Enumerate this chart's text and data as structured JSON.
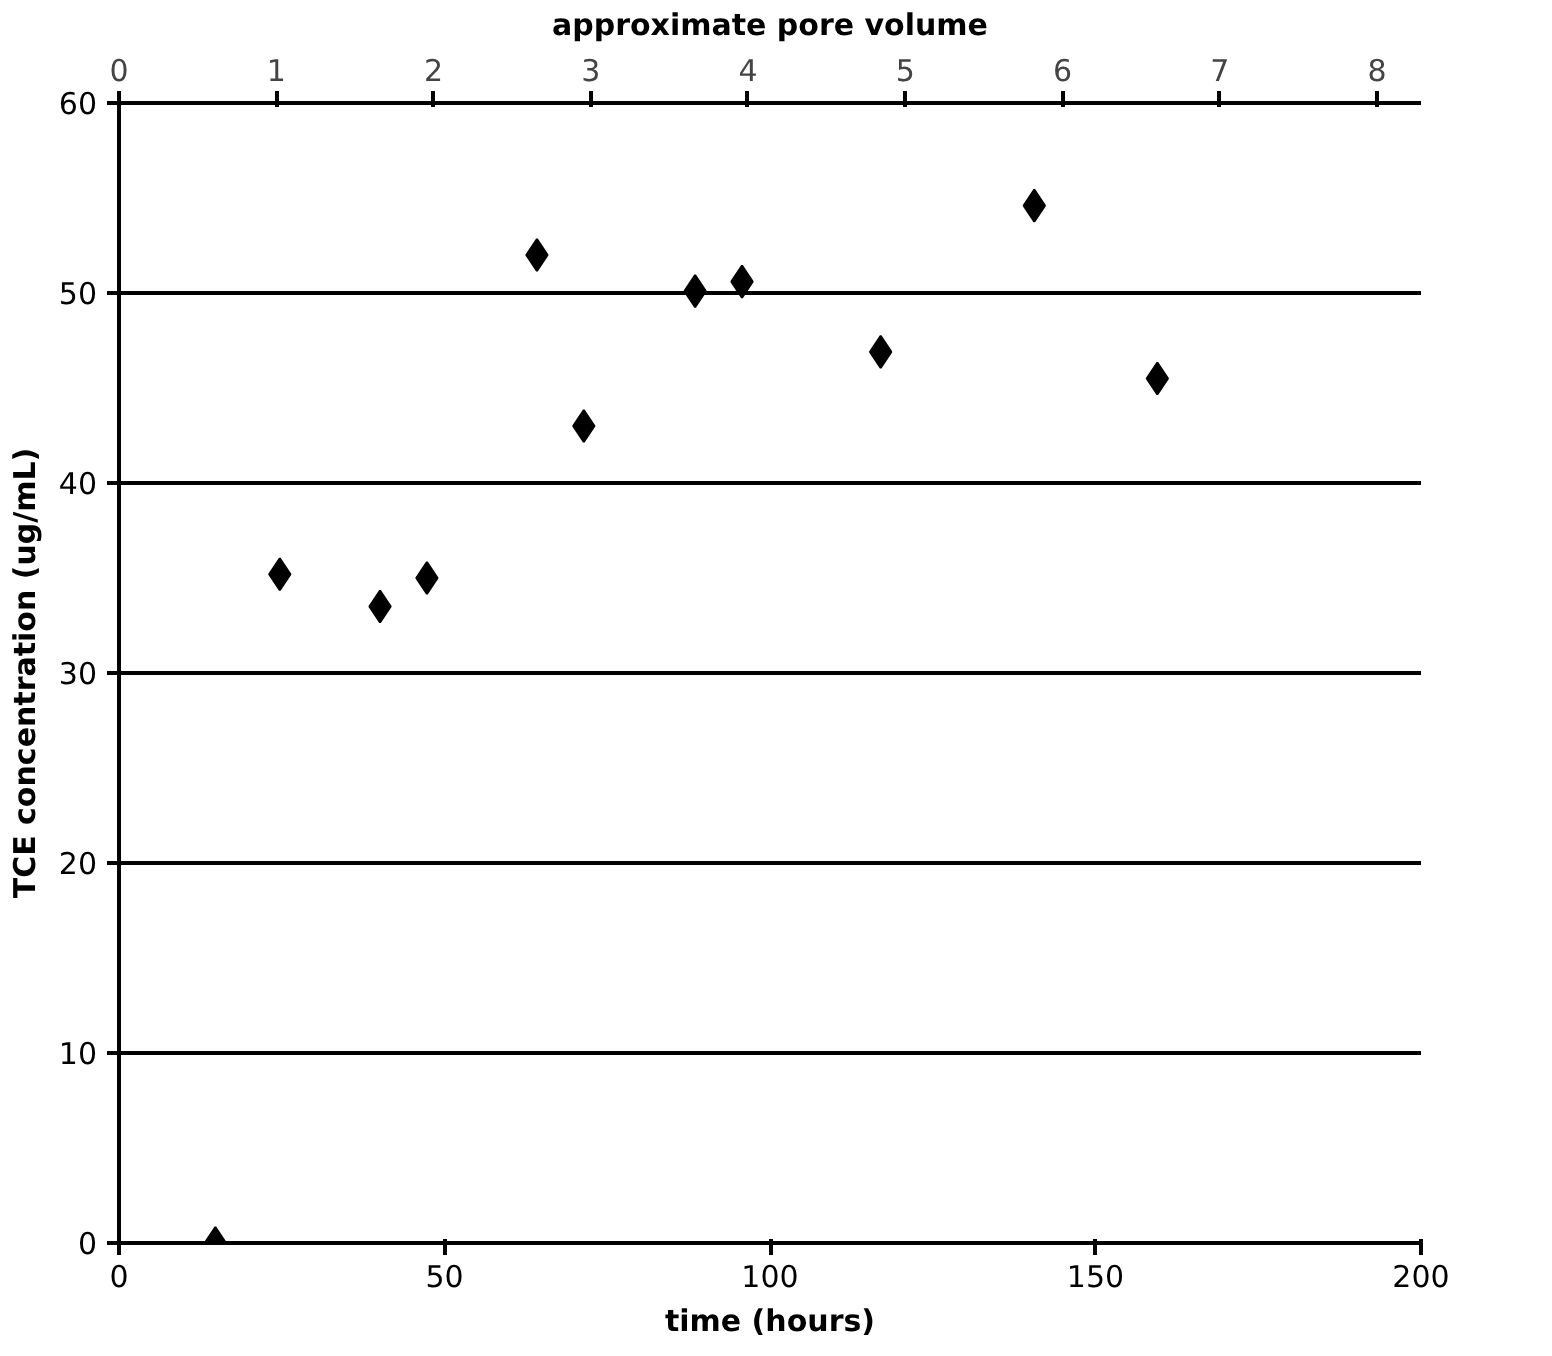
{
  "chart_data": {
    "type": "scatter",
    "xlabel": "time (hours)",
    "ylabel": "TCE concentration (ug/mL)",
    "x2label": "approximate pore volume",
    "x": [
      14.8,
      24.7,
      40.1,
      47.3,
      64.2,
      71.4,
      88.5,
      95.7,
      117,
      140.6,
      159.5
    ],
    "series": [
      {
        "color": "#000000",
        "values": [
          0,
          35.2,
          33.5,
          35,
          52,
          43,
          50.1,
          50.6,
          46.9,
          54.6,
          45.5
        ]
      }
    ],
    "xlim": [
      0,
      200
    ],
    "xticks": [
      0,
      50,
      100,
      150,
      200
    ],
    "ylim": [
      0,
      60
    ],
    "yticks": [
      0,
      10,
      20,
      30,
      40,
      50,
      60
    ],
    "x2lim": [
      0,
      8.28
    ],
    "x2ticks": [
      0,
      1,
      2,
      3,
      4,
      5,
      6,
      7,
      8
    ],
    "grid": "y",
    "marker": "diamond"
  }
}
